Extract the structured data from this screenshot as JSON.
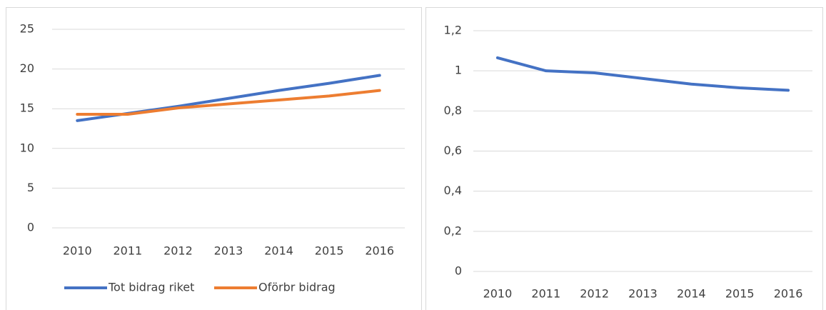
{
  "chart_data": [
    {
      "type": "line",
      "categories": [
        "2010",
        "2011",
        "2012",
        "2013",
        "2014",
        "2015",
        "2016"
      ],
      "series": [
        {
          "name": "Tot bidrag riket",
          "color": "#4472c4",
          "values": [
            13.5,
            14.4,
            15.3,
            16.3,
            17.3,
            18.2,
            19.2
          ]
        },
        {
          "name": "Oförbr bidrag",
          "color": "#ed7d31",
          "values": [
            14.3,
            14.3,
            15.1,
            15.6,
            16.1,
            16.6,
            17.3
          ]
        }
      ],
      "ylim": [
        0,
        25
      ],
      "yticks": [
        0,
        5,
        10,
        15,
        20,
        25
      ],
      "grid": true,
      "legend": "bottom"
    },
    {
      "type": "line",
      "categories": [
        "2010",
        "2011",
        "2012",
        "2013",
        "2014",
        "2015",
        "2016"
      ],
      "series": [
        {
          "color": "#4472c4",
          "values": [
            1.065,
            1.0,
            0.99,
            0.962,
            0.934,
            0.915,
            0.903
          ]
        }
      ],
      "ylim": [
        0,
        1.2
      ],
      "yticks": [
        0,
        {
          "value": 0.2,
          "label": "0,2"
        },
        {
          "value": 0.4,
          "label": "0,4"
        },
        {
          "value": 0.6,
          "label": "0,6"
        },
        {
          "value": 0.8,
          "label": "0,8"
        },
        1,
        {
          "value": 1.2,
          "label": "1,2"
        }
      ],
      "grid": true
    }
  ]
}
